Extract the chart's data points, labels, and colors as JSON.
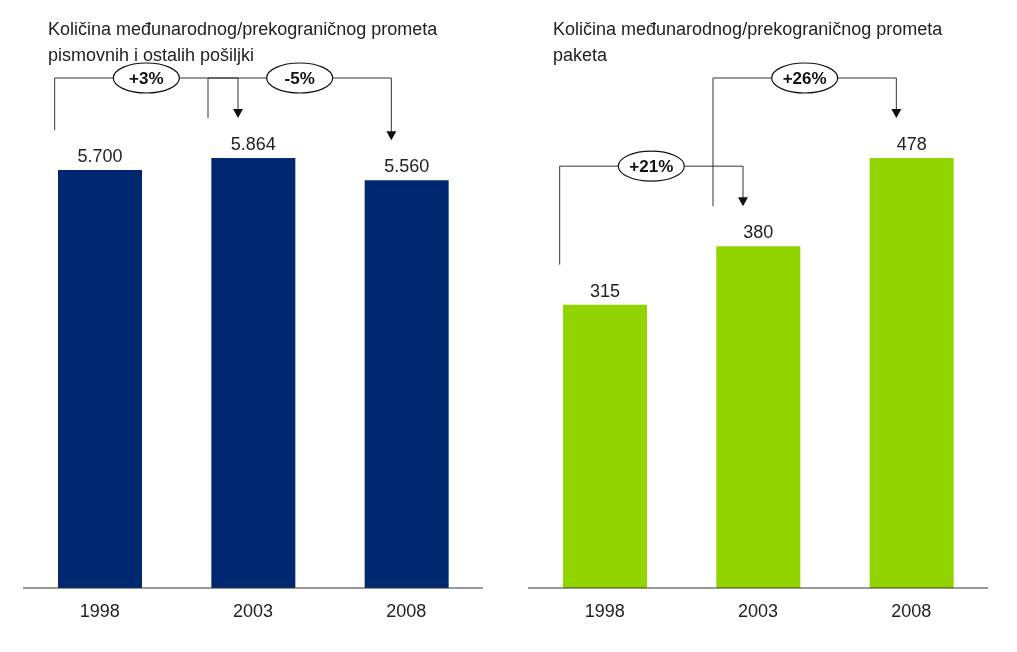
{
  "chart_data": [
    {
      "type": "bar",
      "title": "Količina međunarodnog/prekograničnog prometa pismovnih i ostalih pošiljki",
      "categories": [
        "1998",
        "2003",
        "2008"
      ],
      "values": [
        5700,
        5864,
        5560
      ],
      "value_labels": [
        "5.700",
        "5.864",
        "5.560"
      ],
      "color": "#002870",
      "annotations": [
        "+3%",
        "-5%"
      ]
    },
    {
      "type": "bar",
      "title": "Količina međunarodnog/prekograničnog prometa paketa",
      "categories": [
        "1998",
        "2003",
        "2008"
      ],
      "values": [
        315,
        380,
        478
      ],
      "data_labels": true,
      "color": "#92d400",
      "annotations": [
        "+21%",
        "+26%"
      ]
    }
  ]
}
